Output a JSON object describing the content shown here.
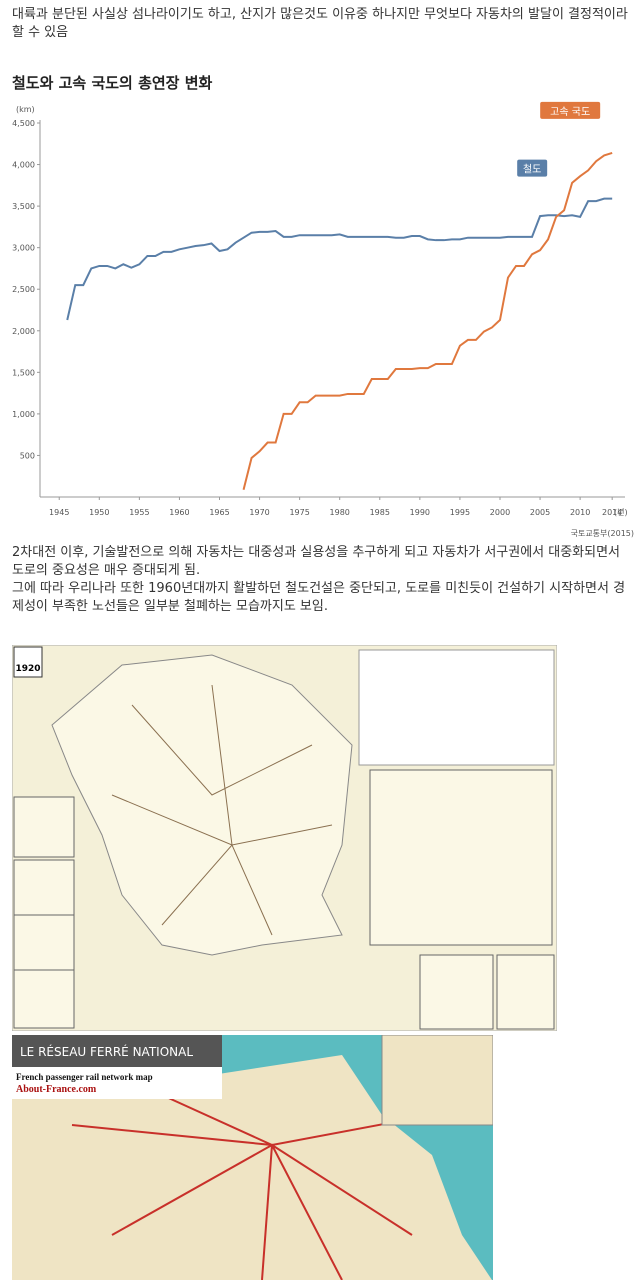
{
  "paragraphs": [
    "대륙과 분단된 사실상 섬나라이기도 하고, 산지가 많은것도 이유중 하나지만 무엇보다 자동차의 발달이 결정적이라 할 수 있음",
    "2차대전 이후, 기술발전으로 의해 자동차는 대중성과 실용성을 추구하게 되고 자동차가 서구권에서 대중화되면서 도로의 중요성은 매우 증대되게 됨.",
    "그에 따라 우리나라 또한 1960년대까지 활발하던 철도건설은 중단되고, 도로를 미친듯이 건설하기 시작하면서 경제성이 부족한 노선들은 일부분 철폐하는 모습까지도 보임."
  ],
  "chart_data": {
    "type": "line",
    "title": "철도와 고속 국도의 총연장 변화",
    "y_axis_label": "(km)",
    "x_axis_label": "(년)",
    "source": "국토교통부(2015)",
    "x": [
      1946,
      1947,
      1948,
      1949,
      1950,
      1951,
      1952,
      1953,
      1954,
      1955,
      1956,
      1957,
      1958,
      1959,
      1960,
      1961,
      1962,
      1963,
      1964,
      1965,
      1966,
      1967,
      1968,
      1969,
      1970,
      1971,
      1972,
      1973,
      1974,
      1975,
      1976,
      1977,
      1978,
      1979,
      1980,
      1981,
      1982,
      1983,
      1984,
      1985,
      1986,
      1987,
      1988,
      1989,
      1990,
      1991,
      1992,
      1993,
      1994,
      1995,
      1996,
      1997,
      1998,
      1999,
      2000,
      2001,
      2002,
      2003,
      2004,
      2005,
      2006,
      2007,
      2008,
      2009,
      2010,
      2011,
      2012,
      2013,
      2014
    ],
    "series": [
      {
        "name": "철도",
        "color": "#5a7fa8",
        "values": [
          2130,
          2550,
          2550,
          2750,
          2780,
          2780,
          2750,
          2800,
          2760,
          2800,
          2900,
          2900,
          2950,
          2950,
          2980,
          3000,
          3020,
          3030,
          3050,
          2960,
          2980,
          3060,
          3120,
          3180,
          3190,
          3190,
          3200,
          3130,
          3130,
          3150,
          3150,
          3150,
          3150,
          3150,
          3160,
          3130,
          3130,
          3130,
          3130,
          3130,
          3130,
          3120,
          3120,
          3140,
          3140,
          3100,
          3090,
          3090,
          3100,
          3100,
          3120,
          3120,
          3120,
          3120,
          3120,
          3130,
          3130,
          3130,
          3130,
          3380,
          3390,
          3390,
          3380,
          3390,
          3370,
          3560,
          3560,
          3590,
          3590
        ]
      },
      {
        "name": "고속 국도",
        "color": "#e0783e",
        "values": [
          null,
          null,
          null,
          null,
          null,
          null,
          null,
          null,
          null,
          null,
          null,
          null,
          null,
          null,
          null,
          null,
          null,
          null,
          null,
          null,
          null,
          null,
          87,
          470,
          550,
          655,
          655,
          1000,
          1000,
          1140,
          1140,
          1220,
          1220,
          1220,
          1220,
          1240,
          1240,
          1240,
          1420,
          1420,
          1420,
          1540,
          1540,
          1540,
          1550,
          1550,
          1600,
          1600,
          1600,
          1820,
          1890,
          1890,
          1990,
          2040,
          2130,
          2640,
          2780,
          2780,
          2920,
          2970,
          3100,
          3370,
          3450,
          3780,
          3860,
          3930,
          4040,
          4110,
          4140
        ]
      }
    ],
    "xlim": [
      1942.6,
      2015.6
    ],
    "xticks": [
      1945,
      1950,
      1955,
      1960,
      1965,
      1970,
      1975,
      1980,
      1985,
      1990,
      1995,
      2000,
      2005,
      2010,
      2014
    ],
    "ylim": [
      0,
      4500
    ],
    "yticks": [
      500,
      {
        "value": 1000,
        "label": "1,000"
      },
      {
        "value": 1500,
        "label": "1,500"
      },
      {
        "value": 2000,
        "label": "2,000"
      },
      {
        "value": 2500,
        "label": "2,500"
      },
      {
        "value": 3000,
        "label": "3,000"
      },
      {
        "value": 3500,
        "label": "3,500"
      },
      {
        "value": 4000,
        "label": "4,000"
      },
      {
        "value": 4500,
        "label": "4,500"
      }
    ],
    "grid": false
  },
  "maps": [
    {
      "label": "1920"
    },
    {
      "title": "LE RÉSEAU FERRÉ NATIONAL",
      "subtitle": "French passenger rail network map",
      "site": "About-France.com"
    }
  ]
}
